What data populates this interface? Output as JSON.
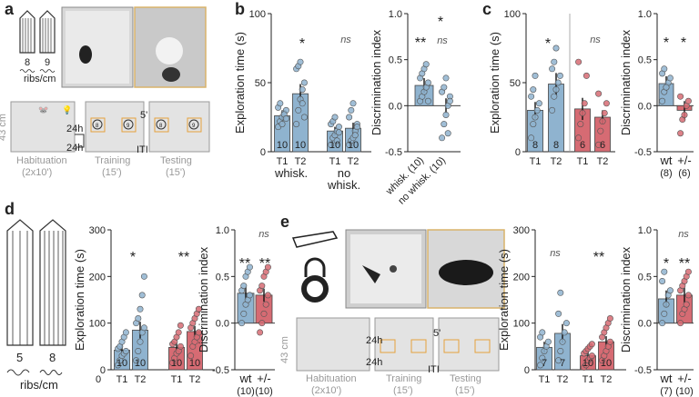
{
  "figure": {
    "panel_a": {
      "letter": "a",
      "tubes": [
        "8",
        "9"
      ],
      "ribs_label": "ribs/cm",
      "size_label": "43 cm",
      "delay_24h": "24h",
      "delay_5": "5'",
      "iti": "ITI",
      "phases": [
        "Habituation",
        "Training",
        "Testing"
      ],
      "durations": [
        "(2x10')",
        "(15')",
        "(15')"
      ],
      "object_numbers": [
        "8",
        "9",
        "8",
        "9"
      ]
    },
    "panel_d": {
      "letter": "d",
      "tubes": [
        "5",
        "8"
      ],
      "ribs_label": "ribs/cm"
    },
    "panel_e": {
      "letter": "e",
      "size_label": "43 cm",
      "delay_24h": "24h",
      "delay_5": "5'",
      "iti": "ITI",
      "phases": [
        "Habituation",
        "Training",
        "Testing"
      ],
      "durations": [
        "(2x10')",
        "(15')",
        "(15')"
      ]
    }
  },
  "chart_data": [
    {
      "id": "b_expl",
      "panel": "b",
      "type": "bar",
      "ylabel": "Exploration time (s)",
      "ylim": [
        0,
        100
      ],
      "yticks": [
        "0",
        "50",
        "100"
      ],
      "categories": [
        "T1",
        "T2",
        "T1",
        "T2"
      ],
      "groups": [
        "whisk.",
        "no\nwhisk."
      ],
      "values": [
        26,
        42,
        15,
        17
      ],
      "errors": [
        4,
        7,
        3,
        4
      ],
      "colors": [
        "#8fb3cf",
        "#8fb3cf",
        "#8fb3cf",
        "#8fb3cf"
      ],
      "n_labels": [
        "10",
        "10",
        "10",
        "10"
      ],
      "points": [
        [
          18,
          22,
          25,
          28,
          30,
          32,
          35,
          20,
          27,
          24
        ],
        [
          20,
          30,
          38,
          45,
          50,
          60,
          62,
          65,
          35,
          25
        ],
        [
          5,
          10,
          12,
          15,
          18,
          20,
          22,
          25,
          8,
          14
        ],
        [
          5,
          8,
          10,
          15,
          20,
          25,
          30,
          35,
          12,
          18
        ]
      ],
      "annotations": [
        "*",
        "ns"
      ]
    },
    {
      "id": "b_di",
      "panel": "b",
      "type": "bar",
      "ylabel": "Discrimination index",
      "ylim": [
        -0.5,
        1.0
      ],
      "yticks": [
        "-0.5",
        "0.0",
        "0.5",
        "1.0"
      ],
      "categories": [
        "whisk. (10)",
        "no whisk. (10)"
      ],
      "values": [
        0.22,
        0.0
      ],
      "errors": [
        0.08,
        0.08
      ],
      "colors": [
        "#8fb3cf",
        "#ffffff"
      ],
      "points": [
        [
          0.05,
          0.1,
          0.15,
          0.2,
          0.25,
          0.3,
          0.35,
          0.4,
          0.45,
          0.05
        ],
        [
          -0.35,
          -0.2,
          -0.1,
          0.0,
          0.1,
          0.15,
          0.2,
          0.3,
          -0.3,
          0.05
        ]
      ],
      "annotations": [
        "**",
        "ns",
        "*"
      ]
    },
    {
      "id": "c_expl",
      "panel": "c",
      "type": "bar",
      "ylabel": "Exploration time (s)",
      "ylim": [
        0,
        100
      ],
      "yticks": [
        "0",
        "50",
        "100"
      ],
      "categories": [
        "T1",
        "T2",
        "T1",
        "T2"
      ],
      "values": [
        30,
        49,
        31,
        25
      ],
      "errors": [
        6,
        8,
        8,
        5
      ],
      "colors": [
        "#8fb3cf",
        "#8fb3cf",
        "#d66b73",
        "#d66b73"
      ],
      "n_labels": [
        "8",
        "8",
        "6",
        "6"
      ],
      "points": [
        [
          10,
          20,
          25,
          30,
          35,
          40,
          45,
          55
        ],
        [
          30,
          40,
          45,
          50,
          55,
          60,
          65,
          75
        ],
        [
          10,
          20,
          28,
          35,
          55,
          65
        ],
        [
          5,
          15,
          22,
          28,
          35,
          42
        ]
      ],
      "annotations": [
        "*",
        "ns"
      ]
    },
    {
      "id": "c_di",
      "panel": "c",
      "type": "bar",
      "ylabel": "Discrimination index",
      "ylim": [
        -0.5,
        1.0
      ],
      "yticks": [
        "-0.5",
        "0.0",
        "0.5",
        "1.0"
      ],
      "categories": [
        "wt",
        "+/-"
      ],
      "counts": [
        "(8)",
        "(6)"
      ],
      "values": [
        0.24,
        -0.05
      ],
      "errors": [
        0.08,
        0.1
      ],
      "colors": [
        "#8fb3cf",
        "#d66b73"
      ],
      "points": [
        [
          0.05,
          0.15,
          0.2,
          0.25,
          0.3,
          0.35,
          0.4,
          0.2
        ],
        [
          -0.3,
          -0.15,
          -0.1,
          0.0,
          0.05,
          0.1
        ]
      ],
      "annotations": [
        "*",
        "*"
      ]
    },
    {
      "id": "d_expl",
      "panel": "d",
      "type": "bar",
      "ylabel": "Exploration time (s)",
      "ylim": [
        0,
        300
      ],
      "yticks": [
        "0",
        "100",
        "200",
        "300"
      ],
      "categories": [
        "T1",
        "T2",
        "T1",
        "T2"
      ],
      "values": [
        42,
        85,
        48,
        82
      ],
      "errors": [
        10,
        18,
        10,
        12
      ],
      "colors": [
        "#8fb3cf",
        "#8fb3cf",
        "#d66b73",
        "#d66b73"
      ],
      "n_labels": [
        "10",
        "10",
        "10",
        "10"
      ],
      "points": [
        [
          10,
          20,
          30,
          35,
          40,
          45,
          50,
          60,
          70,
          80
        ],
        [
          20,
          40,
          60,
          80,
          90,
          100,
          110,
          130,
          160,
          200
        ],
        [
          15,
          25,
          35,
          40,
          50,
          55,
          60,
          70,
          80,
          95
        ],
        [
          30,
          50,
          60,
          70,
          80,
          90,
          100,
          110,
          120,
          130
        ]
      ],
      "annotations": [
        "*",
        "**"
      ]
    },
    {
      "id": "d_di",
      "panel": "d",
      "type": "bar",
      "ylabel": "Discrimination index",
      "ylim": [
        -0.5,
        1.0
      ],
      "yticks": [
        "-0.5",
        "0.0",
        "0.5",
        "1.0"
      ],
      "categories": [
        "wt",
        "+/-"
      ],
      "counts": [
        "(10)",
        "(10)"
      ],
      "values": [
        0.32,
        0.3
      ],
      "errors": [
        0.07,
        0.07
      ],
      "colors": [
        "#8fb3cf",
        "#d66b73"
      ],
      "points": [
        [
          0.0,
          0.1,
          0.2,
          0.25,
          0.3,
          0.35,
          0.4,
          0.5,
          0.55,
          0.6
        ],
        [
          -0.1,
          0.0,
          0.1,
          0.2,
          0.3,
          0.35,
          0.4,
          0.5,
          0.55,
          0.6
        ]
      ],
      "annotations": [
        "**",
        "**",
        "ns"
      ]
    },
    {
      "id": "e_expl",
      "panel": "e",
      "type": "bar",
      "ylabel": "Exploration time (s)",
      "ylim": [
        0,
        300
      ],
      "yticks": [
        "0",
        "100",
        "200",
        "300"
      ],
      "categories": [
        "T1",
        "T2",
        "T1",
        "T2"
      ],
      "values": [
        48,
        78,
        30,
        60
      ],
      "errors": [
        12,
        20,
        8,
        12
      ],
      "colors": [
        "#8fb3cf",
        "#8fb3cf",
        "#d66b73",
        "#d66b73"
      ],
      "n_labels": [
        "7",
        "7",
        "10",
        "10"
      ],
      "points": [
        [
          10,
          25,
          40,
          50,
          60,
          70,
          80
        ],
        [
          20,
          40,
          60,
          80,
          100,
          120,
          165
        ],
        [
          5,
          10,
          20,
          25,
          30,
          35,
          40,
          45,
          50,
          55
        ],
        [
          20,
          30,
          40,
          50,
          60,
          70,
          80,
          90,
          100,
          110
        ]
      ],
      "annotations": [
        "ns",
        "**"
      ]
    },
    {
      "id": "e_di",
      "panel": "e",
      "type": "bar",
      "ylabel": "Discrimination index",
      "ylim": [
        -0.5,
        1.0
      ],
      "yticks": [
        "-0.5",
        "0.0",
        "0.5",
        "1.0"
      ],
      "categories": [
        "wt",
        "+/-"
      ],
      "counts": [
        "(7)",
        "(10)"
      ],
      "values": [
        0.26,
        0.3
      ],
      "errors": [
        0.09,
        0.08
      ],
      "colors": [
        "#8fb3cf",
        "#d66b73"
      ],
      "points": [
        [
          0.0,
          0.1,
          0.2,
          0.3,
          0.35,
          0.45,
          0.55
        ],
        [
          0.0,
          0.1,
          0.15,
          0.2,
          0.3,
          0.35,
          0.4,
          0.45,
          0.5,
          0.55
        ]
      ],
      "annotations": [
        "*",
        "**",
        "ns"
      ]
    }
  ]
}
